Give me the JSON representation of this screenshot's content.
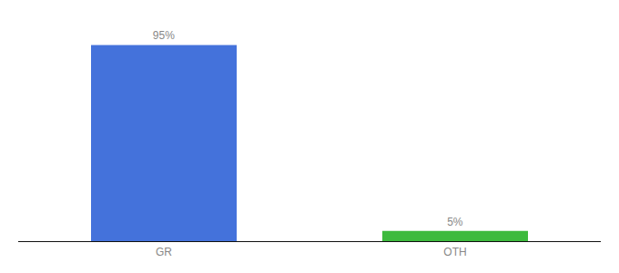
{
  "chart_data": {
    "type": "bar",
    "categories": [
      "GR",
      "OTH"
    ],
    "values": [
      95,
      5
    ],
    "value_labels": [
      "95%",
      "5%"
    ],
    "colors": [
      "#4472db",
      "#3dba3d"
    ],
    "ylim": [
      0,
      108
    ],
    "data_labels": true,
    "grid": false,
    "tick_labels": "x"
  }
}
